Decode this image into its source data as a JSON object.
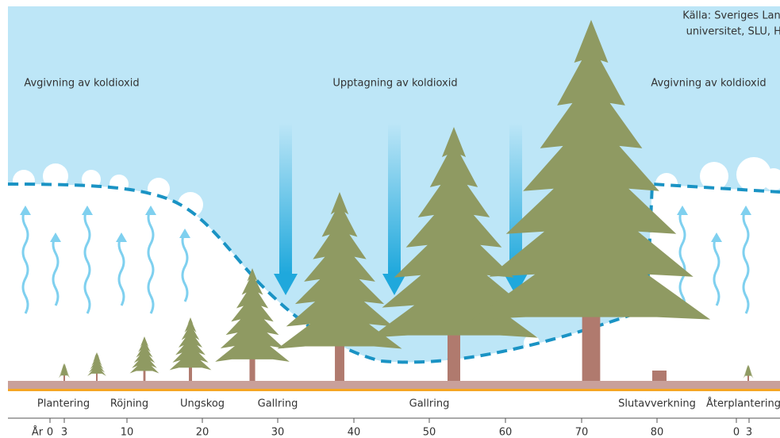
{
  "source_lines": [
    "Källa: Sveriges Lantbruks-",
    "universitet, SLU, Holmen"
  ],
  "headings": [
    "Avgivning av koldioxid",
    "Upptagning av koldioxid",
    "Avgivning av koldioxid"
  ],
  "stages": [
    "Plantering",
    "Röjning",
    "Ungskog",
    "Gallring",
    "Gallring",
    "Slutavverkning",
    "Återplantering"
  ],
  "axis": {
    "label": "År",
    "ticks": [
      "0",
      "3",
      "10",
      "20",
      "30",
      "40",
      "50",
      "60",
      "70",
      "80",
      "0",
      "3"
    ]
  }
}
